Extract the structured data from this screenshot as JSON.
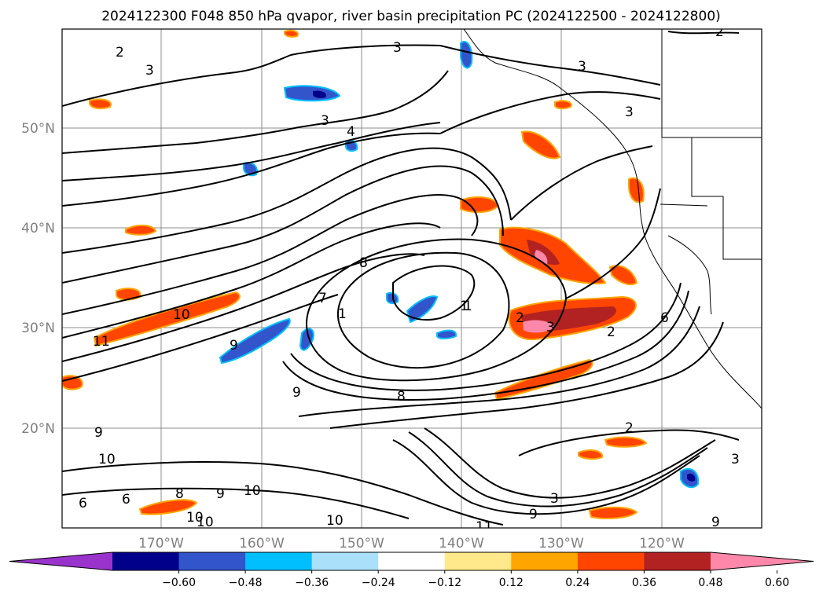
{
  "title": "2024122300 F048 850 hPa qvapor, river basin precipitation PC (2024122500 - 2024122800)",
  "map": {
    "lat_labels": [
      "50°N",
      "40°N",
      "30°N",
      "20°N"
    ],
    "lon_labels": [
      "170°W",
      "160°W",
      "150°W",
      "140°W",
      "130°W",
      "120°W"
    ],
    "gridlines": true
  },
  "contour_labels": [
    "2",
    "3",
    "3",
    "3",
    "3",
    "4",
    "3",
    "2",
    "1",
    "1",
    "7",
    "8",
    "10",
    "11",
    "9",
    "8",
    "9",
    "10",
    "9",
    "10",
    "6",
    "6",
    "9",
    "10",
    "8",
    "2",
    "3",
    "2",
    "1",
    "2",
    "3",
    "3",
    "9",
    "10",
    "11",
    "10",
    "6",
    "9"
  ],
  "colorbar": {
    "extend": "both",
    "ticks": [
      "−0.60",
      "−0.48",
      "−0.36",
      "−0.24",
      "−0.12",
      "0.12",
      "0.24",
      "0.36",
      "0.48",
      "0.60"
    ],
    "colors": [
      "#9933cc",
      "#00008b",
      "#3355cc",
      "#00bfff",
      "#aae0fa",
      "#ffffff",
      "#ffe98a",
      "#ffa500",
      "#ff4500",
      "#b22222",
      "#ff88aa"
    ]
  }
}
